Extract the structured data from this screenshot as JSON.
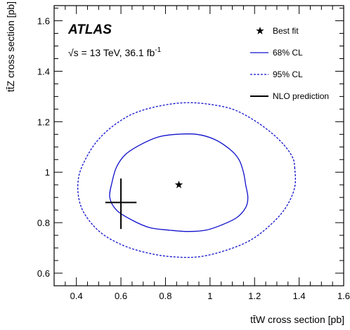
{
  "chart_data": {
    "type": "scatter",
    "xlabel": "tt̄W cross section [pb]",
    "ylabel": "tt̄Z cross section [pb]",
    "xlim": [
      0.3,
      1.6
    ],
    "ylim": [
      0.55,
      1.66
    ],
    "x_ticks": [
      0.4,
      0.6,
      0.8,
      1.0,
      1.2,
      1.4,
      1.6
    ],
    "x_tick_labels": [
      "0.4",
      "0.6",
      "0.8",
      "1",
      "1.2",
      "1.4",
      "1.6"
    ],
    "y_ticks": [
      0.6,
      0.8,
      1.0,
      1.2,
      1.4,
      1.6
    ],
    "y_tick_labels": [
      "0.6",
      "0.8",
      "1",
      "1.2",
      "1.4",
      "1.6"
    ],
    "grid": false,
    "annotations": {
      "experiment": "ATLAS",
      "energy_prefix": "√s = 13 TeV,  36.1 fb",
      "energy_superscript": "-1"
    },
    "legend": {
      "placement": "top-right",
      "entries": [
        {
          "label": "Best fit",
          "marker": "star"
        },
        {
          "label": "68% CL",
          "line": "solid",
          "color": "#1010cc"
        },
        {
          "label": "95% CL",
          "line": "dotted",
          "color": "#1010cc"
        },
        {
          "label": "NLO prediction",
          "line": "solid",
          "color": "#000000"
        }
      ]
    },
    "best_fit": {
      "x": 0.86,
      "y": 0.95
    },
    "nlo_prediction": {
      "x": 0.6,
      "y": 0.88,
      "x_err": [
        0.07,
        0.07
      ],
      "y_err": [
        0.105,
        0.095
      ]
    },
    "contour_68": {
      "color": "#1010cc",
      "x": [
        1.15,
        1.16,
        1.17,
        1.16,
        1.12,
        1.05,
        0.98,
        0.9,
        0.82,
        0.73,
        0.65,
        0.58,
        0.55,
        0.56,
        0.58,
        0.62,
        0.69,
        0.77,
        0.85,
        0.94,
        1.02,
        1.09,
        1.13,
        1.15
      ],
      "y": [
        1.0,
        0.95,
        0.9,
        0.86,
        0.82,
        0.79,
        0.77,
        0.765,
        0.77,
        0.78,
        0.81,
        0.85,
        0.9,
        0.96,
        1.02,
        1.07,
        1.11,
        1.14,
        1.15,
        1.15,
        1.13,
        1.09,
        1.05,
        1.0
      ]
    },
    "contour_95": {
      "color": "#1010cc",
      "x": [
        1.38,
        1.38,
        1.34,
        1.27,
        1.18,
        1.07,
        0.95,
        0.83,
        0.72,
        0.61,
        0.51,
        0.44,
        0.41,
        0.41,
        0.44,
        0.49,
        0.56,
        0.65,
        0.76,
        0.88,
        0.99,
        1.1,
        1.19,
        1.27,
        1.33,
        1.37,
        1.38
      ],
      "y": [
        1.02,
        0.94,
        0.86,
        0.79,
        0.73,
        0.69,
        0.665,
        0.665,
        0.68,
        0.71,
        0.76,
        0.83,
        0.9,
        0.98,
        1.05,
        1.12,
        1.18,
        1.23,
        1.26,
        1.275,
        1.27,
        1.25,
        1.21,
        1.16,
        1.11,
        1.06,
        1.02
      ]
    }
  }
}
